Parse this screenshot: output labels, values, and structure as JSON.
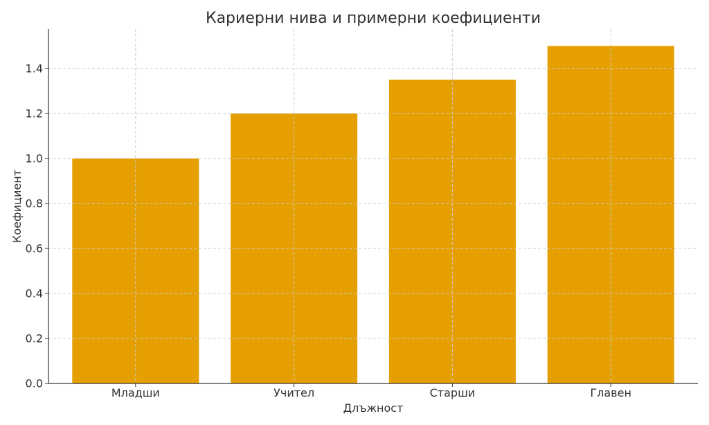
{
  "chart_data": {
    "type": "bar",
    "title": "Кариерни нива и примерни коефициенти",
    "xlabel": "Длъжност",
    "ylabel": "Коефициент",
    "categories": [
      "Младши",
      "Учител",
      "Старши",
      "Главен"
    ],
    "values": [
      1.0,
      1.2,
      1.35,
      1.5
    ],
    "ylim": [
      0,
      1.575
    ],
    "yticks": [
      {
        "value": 0.0,
        "label": "0.0"
      },
      {
        "value": 0.2,
        "label": "0.2"
      },
      {
        "value": 0.4,
        "label": "0.4"
      },
      {
        "value": 0.6,
        "label": "0.6"
      },
      {
        "value": 0.8,
        "label": "0.8"
      },
      {
        "value": 1.0,
        "label": "1.0"
      },
      {
        "value": 1.2,
        "label": "1.2"
      },
      {
        "value": 1.4,
        "label": "1.4"
      }
    ],
    "grid": true,
    "bar_color": "#E69F00"
  }
}
